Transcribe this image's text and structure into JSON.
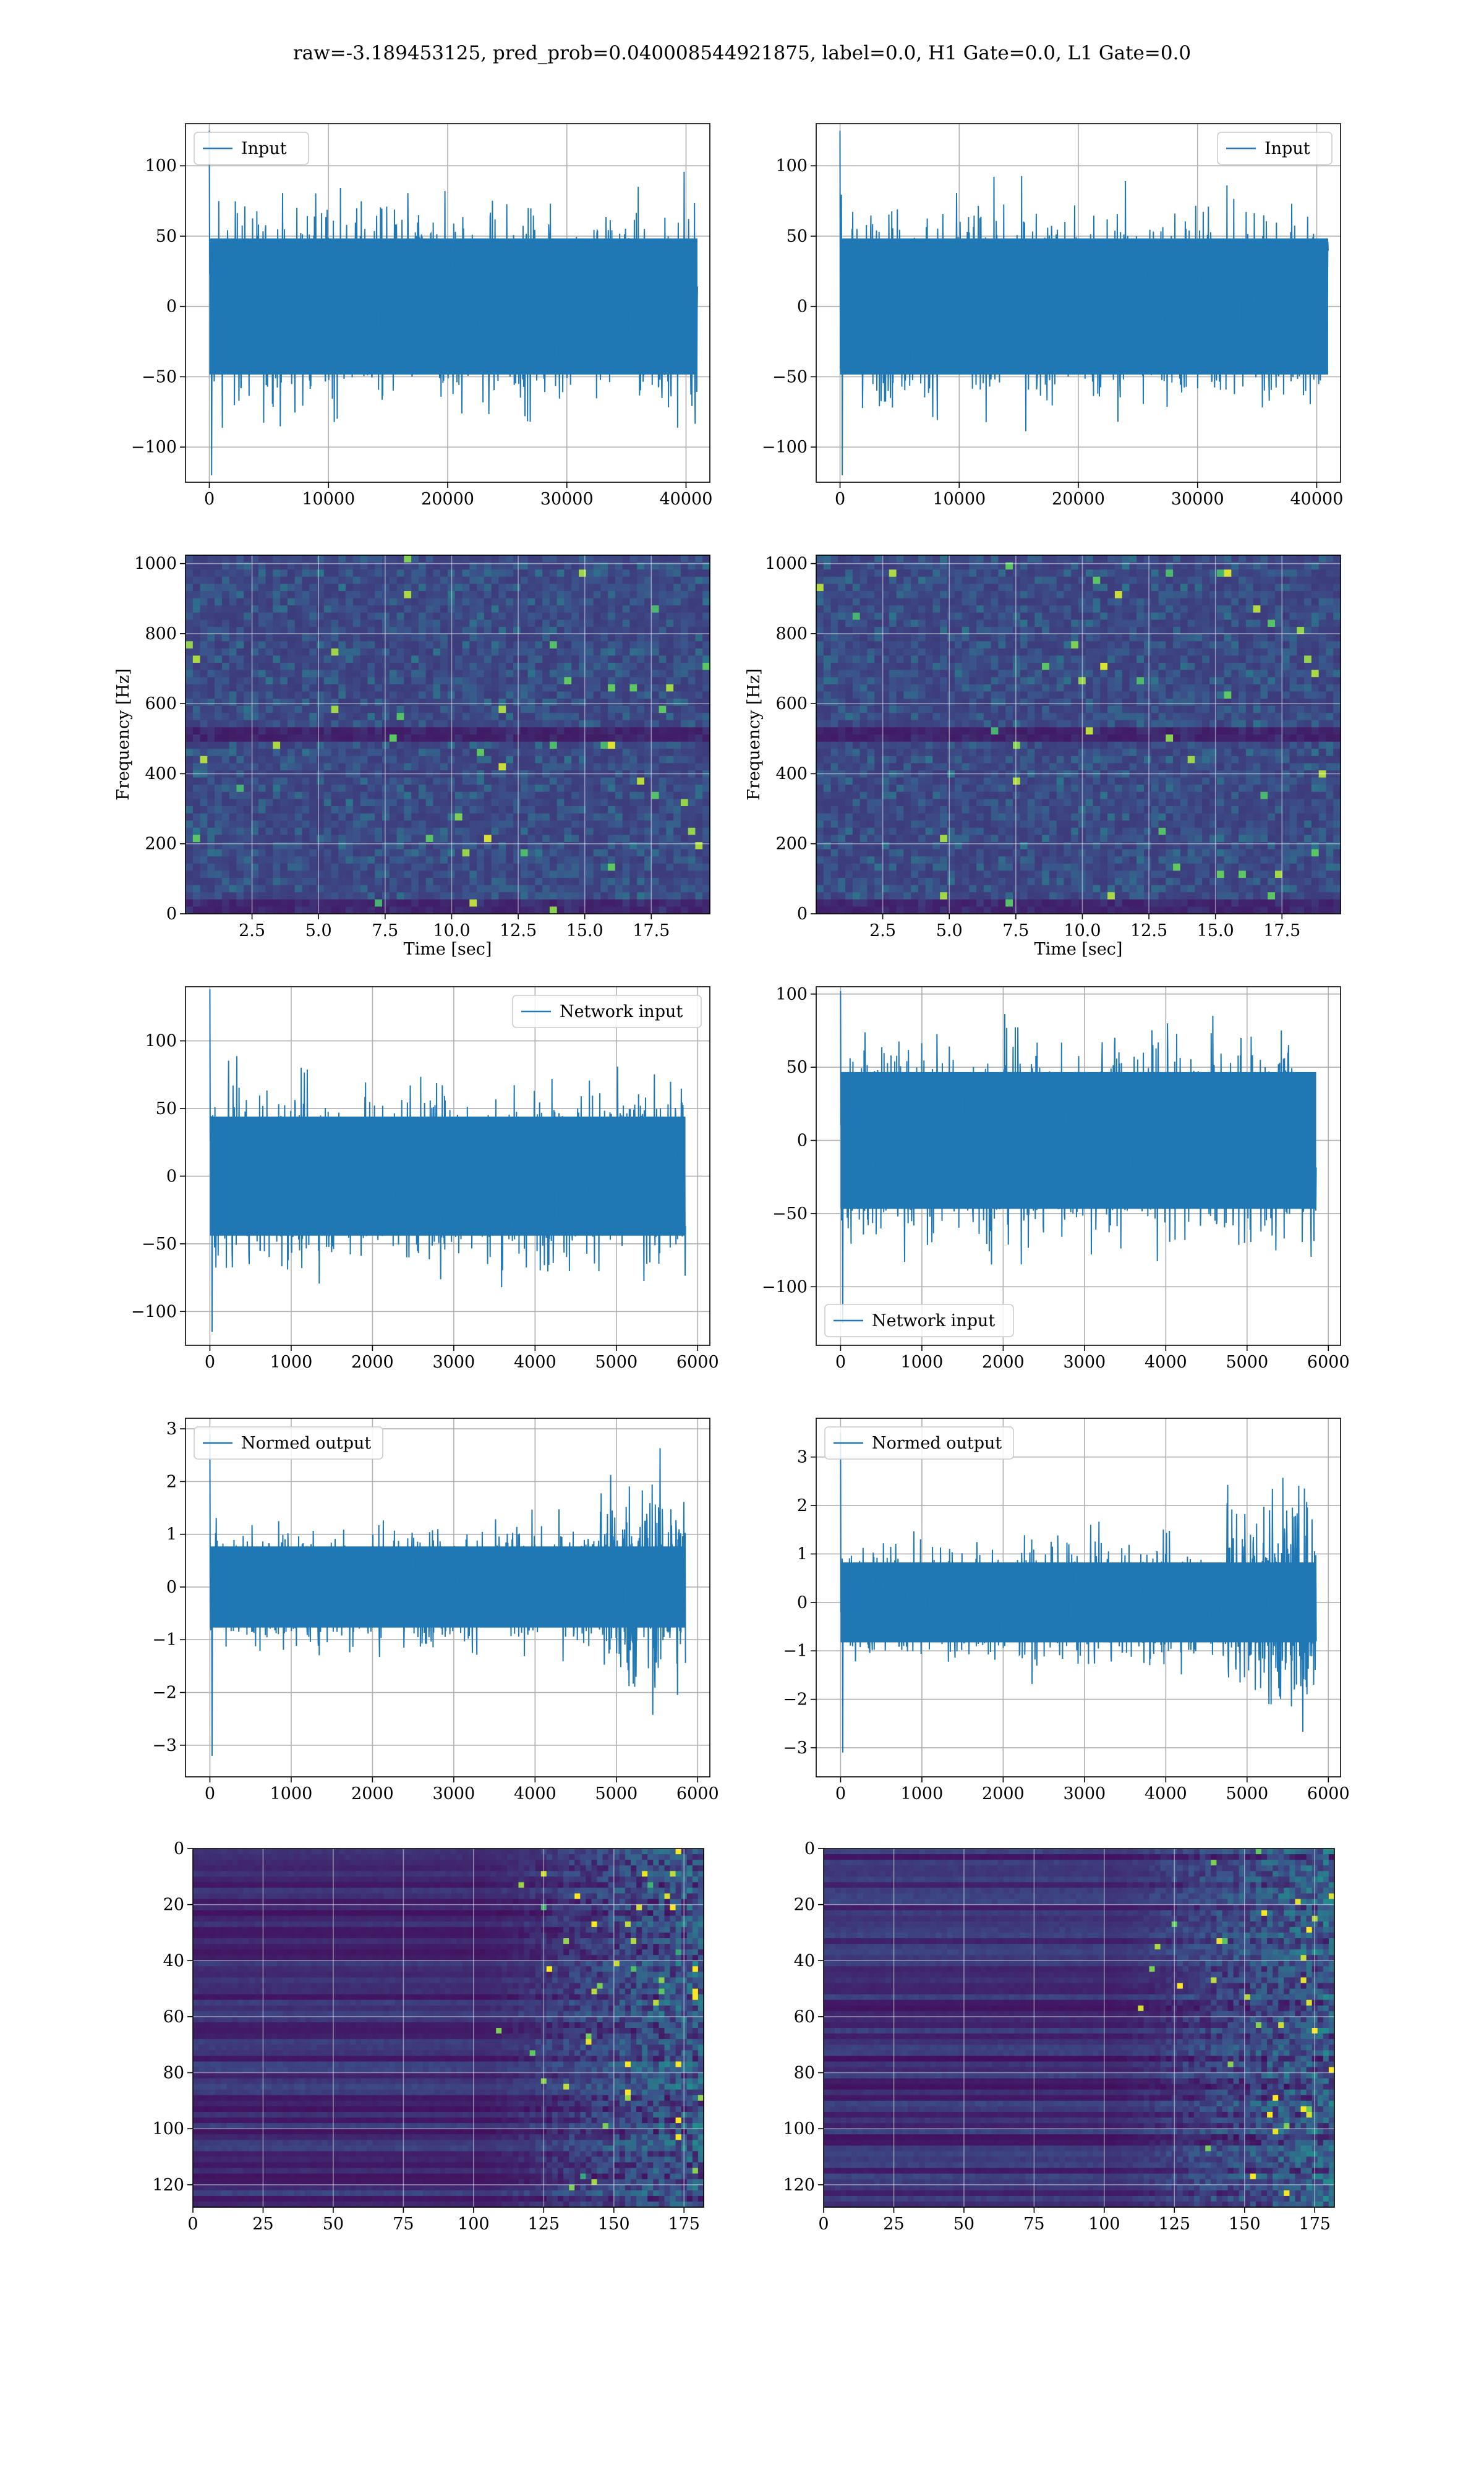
{
  "suptitle": "raw=-3.189453125, pred_prob=0.040008544921875, label=0.0, H1 Gate=0.0, L1 Gate=0.0",
  "colors": {
    "line": "#1f77b4",
    "grid": "#b0b0b0",
    "viridis_low": "#440154",
    "viridis_mid": "#21918c",
    "viridis_high": "#fde725"
  },
  "chart_data": [
    {
      "id": "timeseries-h1-input",
      "type": "line",
      "legend": "Input",
      "legend_loc": "upper left",
      "xlim": [
        -2000,
        42000
      ],
      "ylim": [
        -125,
        130
      ],
      "xticks": [
        0,
        10000,
        20000,
        30000,
        40000
      ],
      "xticklabels": [
        "0",
        "10000",
        "20000",
        "30000",
        "40000"
      ],
      "yticks": [
        -100,
        -50,
        0,
        50,
        100
      ],
      "yticklabels": [
        "−100",
        "−50",
        "0",
        "50",
        "100"
      ],
      "series": [
        {
          "x_range": [
            0,
            40960
          ],
          "amplitude_envelope": [
            [
              0,
              88
            ],
            [
              40960,
              88
            ]
          ],
          "min": -120,
          "max": 125
        }
      ],
      "grid": true
    },
    {
      "id": "timeseries-l1-input",
      "type": "line",
      "legend": "Input",
      "legend_loc": "upper right",
      "xlim": [
        -2000,
        42000
      ],
      "ylim": [
        -125,
        130
      ],
      "xticks": [
        0,
        10000,
        20000,
        30000,
        40000
      ],
      "xticklabels": [
        "0",
        "10000",
        "20000",
        "30000",
        "40000"
      ],
      "yticks": [
        -100,
        -50,
        0,
        50,
        100
      ],
      "yticklabels": [
        "−100",
        "−50",
        "0",
        "50",
        "100"
      ],
      "series": [
        {
          "x_range": [
            0,
            40960
          ],
          "amplitude_envelope": [
            [
              0,
              88
            ],
            [
              40960,
              88
            ]
          ],
          "min": -120,
          "max": 125
        }
      ],
      "grid": true
    },
    {
      "id": "spectrogram-h1",
      "type": "heatmap",
      "xlabel": "Time [sec]",
      "ylabel": "Frequency [Hz]",
      "xlim": [
        0,
        19.7
      ],
      "ylim": [
        0,
        1024
      ],
      "xticks": [
        2.5,
        5.0,
        7.5,
        10.0,
        12.5,
        15.0,
        17.5
      ],
      "xticklabels": [
        "2.5",
        "5.0",
        "7.5",
        "10.0",
        "12.5",
        "15.0",
        "17.5"
      ],
      "yticks": [
        0,
        200,
        400,
        600,
        800,
        1000
      ],
      "yticklabels": [
        "0",
        "200",
        "400",
        "600",
        "800",
        "1000"
      ],
      "colormap": "viridis",
      "grid": true
    },
    {
      "id": "spectrogram-l1",
      "type": "heatmap",
      "xlabel": "Time [sec]",
      "ylabel": "Frequency [Hz]",
      "xlim": [
        0,
        19.7
      ],
      "ylim": [
        0,
        1024
      ],
      "xticks": [
        2.5,
        5.0,
        7.5,
        10.0,
        12.5,
        15.0,
        17.5
      ],
      "xticklabels": [
        "2.5",
        "5.0",
        "7.5",
        "10.0",
        "12.5",
        "15.0",
        "17.5"
      ],
      "yticks": [
        0,
        200,
        400,
        600,
        800,
        1000
      ],
      "yticklabels": [
        "0",
        "200",
        "400",
        "600",
        "800",
        "1000"
      ],
      "colormap": "viridis",
      "grid": true
    },
    {
      "id": "network-input-h1",
      "type": "line",
      "legend": "Network input",
      "legend_loc": "upper right",
      "xlim": [
        -300,
        6150
      ],
      "ylim": [
        -125,
        140
      ],
      "xticks": [
        0,
        1000,
        2000,
        3000,
        4000,
        5000,
        6000
      ],
      "xticklabels": [
        "0",
        "1000",
        "2000",
        "3000",
        "4000",
        "5000",
        "6000"
      ],
      "yticks": [
        -100,
        -50,
        0,
        50,
        100
      ],
      "yticklabels": [
        "−100",
        "−50",
        "0",
        "50",
        "100"
      ],
      "series": [
        {
          "x_range": [
            0,
            5850
          ],
          "amplitude_envelope": [
            [
              0,
              80
            ],
            [
              5850,
              80
            ]
          ],
          "min": -115,
          "max": 138
        }
      ],
      "grid": true
    },
    {
      "id": "network-input-l1",
      "type": "line",
      "legend": "Network input",
      "legend_loc": "lower left",
      "xlim": [
        -300,
        6150
      ],
      "ylim": [
        -140,
        105
      ],
      "xticks": [
        0,
        1000,
        2000,
        3000,
        4000,
        5000,
        6000
      ],
      "xticklabels": [
        "0",
        "1000",
        "2000",
        "3000",
        "4000",
        "5000",
        "6000"
      ],
      "yticks": [
        -100,
        -50,
        0,
        50,
        100
      ],
      "yticklabels": [
        "−100",
        "−50",
        "0",
        "50",
        "100"
      ],
      "series": [
        {
          "x_range": [
            0,
            5850
          ],
          "amplitude_envelope": [
            [
              0,
              85
            ],
            [
              5850,
              85
            ]
          ],
          "min": -125,
          "max": 102
        }
      ],
      "grid": true
    },
    {
      "id": "normed-output-h1",
      "type": "line",
      "legend": "Normed output",
      "legend_loc": "upper left",
      "xlim": [
        -300,
        6150
      ],
      "ylim": [
        -3.6,
        3.2
      ],
      "xticks": [
        0,
        1000,
        2000,
        3000,
        4000,
        5000,
        6000
      ],
      "xticklabels": [
        "0",
        "1000",
        "2000",
        "3000",
        "4000",
        "5000",
        "6000"
      ],
      "yticks": [
        -3,
        -2,
        -1,
        0,
        1,
        2,
        3
      ],
      "yticklabels": [
        "−3",
        "−2",
        "−1",
        "0",
        "1",
        "2",
        "3"
      ],
      "series": [
        {
          "x_range": [
            0,
            5850
          ],
          "amplitude_envelope": [
            [
              0,
              1.4
            ],
            [
              4700,
              1.4
            ],
            [
              4750,
              2.6
            ],
            [
              5850,
              2.6
            ]
          ],
          "min": -3.2,
          "max": 2.9
        }
      ],
      "grid": true
    },
    {
      "id": "normed-output-l1",
      "type": "line",
      "legend": "Normed output",
      "legend_loc": "upper left",
      "xlim": [
        -300,
        6150
      ],
      "ylim": [
        -3.6,
        3.8
      ],
      "xticks": [
        0,
        1000,
        2000,
        3000,
        4000,
        5000,
        6000
      ],
      "xticklabels": [
        "0",
        "1000",
        "2000",
        "3000",
        "4000",
        "5000",
        "6000"
      ],
      "yticks": [
        -3,
        -2,
        -1,
        0,
        1,
        2,
        3
      ],
      "yticklabels": [
        "−3",
        "−2",
        "−1",
        "0",
        "1",
        "2",
        "3"
      ],
      "series": [
        {
          "x_range": [
            0,
            5850
          ],
          "amplitude_envelope": [
            [
              0,
              1.5
            ],
            [
              4700,
              1.5
            ],
            [
              4750,
              2.8
            ],
            [
              5850,
              2.8
            ]
          ],
          "min": -3.1,
          "max": 3.5
        }
      ],
      "grid": true
    },
    {
      "id": "embedding-h1",
      "type": "heatmap",
      "xlim": [
        0,
        182
      ],
      "ylim": [
        128,
        0
      ],
      "xticks": [
        0,
        25,
        50,
        75,
        100,
        125,
        150,
        175
      ],
      "xticklabels": [
        "0",
        "25",
        "50",
        "75",
        "100",
        "125",
        "150",
        "175"
      ],
      "yticks": [
        0,
        20,
        40,
        60,
        80,
        100,
        120
      ],
      "yticklabels": [
        "0",
        "20",
        "40",
        "60",
        "80",
        "100",
        "120"
      ],
      "colormap": "viridis",
      "activity_onset_x": 100,
      "grid": true
    },
    {
      "id": "embedding-l1",
      "type": "heatmap",
      "xlim": [
        0,
        182
      ],
      "ylim": [
        128,
        0
      ],
      "xticks": [
        0,
        25,
        50,
        75,
        100,
        125,
        150,
        175
      ],
      "xticklabels": [
        "0",
        "25",
        "50",
        "75",
        "100",
        "125",
        "150",
        "175"
      ],
      "yticks": [
        0,
        20,
        40,
        60,
        80,
        100,
        120
      ],
      "yticklabels": [
        "0",
        "20",
        "40",
        "60",
        "80",
        "100",
        "120"
      ],
      "colormap": "viridis",
      "activity_onset_x": 100,
      "grid": true
    }
  ]
}
